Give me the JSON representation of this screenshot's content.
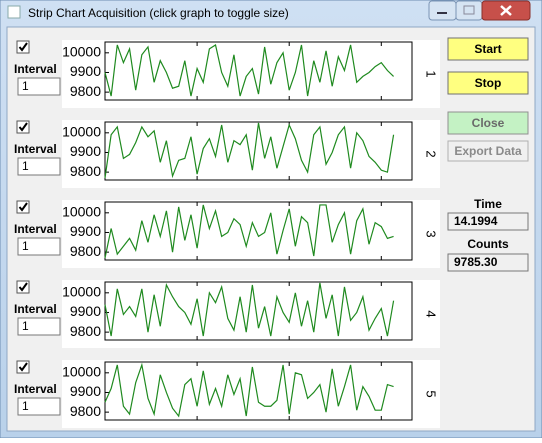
{
  "window": {
    "title": "Strip Chart Acquisition (click graph to toggle size)"
  },
  "buttons": {
    "start": "Start",
    "stop": "Stop",
    "close": "Close",
    "export": "Export Data"
  },
  "readouts": {
    "time_label": "Time",
    "time_value": "14.1994",
    "counts_label": "Counts",
    "counts_value": "9785.30"
  },
  "chart_data": [
    {
      "type": "line",
      "label": "1",
      "checked": true,
      "interval_label": "Interval",
      "interval_value": "1",
      "color": "#1f8a1f",
      "xlim": [
        0,
        50
      ],
      "xticks": [
        15,
        30,
        45
      ],
      "ylim": [
        9760,
        10055
      ],
      "yticks": [
        9800,
        9900,
        10000
      ],
      "values": [
        9900,
        9780,
        10040,
        9950,
        10020,
        9810,
        9990,
        10030,
        9850,
        9960,
        9900,
        9820,
        9830,
        9960,
        9780,
        9920,
        9850,
        10020,
        10040,
        9900,
        9830,
        9990,
        9780,
        9880,
        9920,
        9790,
        10030,
        9840,
        9950,
        10000,
        9810,
        9900,
        10040,
        9780,
        9960,
        9850,
        10010,
        9830,
        9980,
        9910,
        10040,
        9850,
        9880,
        9900,
        9930,
        9950,
        9910,
        9880
      ]
    },
    {
      "type": "line",
      "label": "2",
      "checked": true,
      "interval_label": "Interval",
      "interval_value": "1",
      "color": "#1f8a1f",
      "xlim": [
        0,
        50
      ],
      "xticks": [
        15,
        30,
        45
      ],
      "ylim": [
        9760,
        10055
      ],
      "yticks": [
        9800,
        9900,
        10000
      ],
      "values": [
        9770,
        9990,
        10030,
        9870,
        9890,
        9950,
        10030,
        9980,
        10010,
        9850,
        9960,
        9780,
        9860,
        9870,
        9980,
        9790,
        9920,
        9970,
        9880,
        10040,
        9850,
        9960,
        9940,
        9990,
        9810,
        10050,
        9870,
        9980,
        9820,
        9930,
        10040,
        9970,
        9860,
        9800,
        9990,
        10030,
        9840,
        9900,
        9990,
        10030,
        9820,
        10000,
        9960,
        9880,
        9850,
        9810,
        9800,
        9990
      ]
    },
    {
      "type": "line",
      "label": "3",
      "checked": true,
      "interval_label": "Interval",
      "interval_value": "1",
      "color": "#1f8a1f",
      "xlim": [
        0,
        50
      ],
      "xticks": [
        15,
        30,
        45
      ],
      "ylim": [
        9760,
        10055
      ],
      "yticks": [
        9800,
        9900,
        10000
      ],
      "values": [
        9770,
        9920,
        9790,
        9830,
        9870,
        9810,
        9960,
        9850,
        9990,
        9880,
        10010,
        9800,
        10030,
        9860,
        9990,
        9820,
        10040,
        9920,
        10010,
        9880,
        9900,
        9970,
        9940,
        9830,
        9950,
        9880,
        9900,
        10000,
        9790,
        9910,
        10020,
        9830,
        9980,
        9950,
        9780,
        10040,
        10040,
        9850,
        9940,
        10000,
        9790,
        9960,
        10020,
        9840,
        9950,
        9930,
        9870,
        9880
      ]
    },
    {
      "type": "line",
      "label": "4",
      "checked": true,
      "interval_label": "Interval",
      "interval_value": "1",
      "color": "#1f8a1f",
      "xlim": [
        0,
        50
      ],
      "xticks": [
        15,
        30,
        45
      ],
      "ylim": [
        9760,
        10055
      ],
      "yticks": [
        9800,
        9900,
        10000
      ],
      "values": [
        9940,
        9780,
        10020,
        9890,
        9930,
        9880,
        10020,
        9800,
        9990,
        9830,
        10040,
        9980,
        9930,
        9900,
        9840,
        9970,
        9780,
        10000,
        9950,
        10030,
        9870,
        9810,
        9980,
        9800,
        10040,
        9820,
        9930,
        9780,
        9980,
        9900,
        9850,
        10000,
        9830,
        9960,
        9800,
        10050,
        9870,
        9990,
        9780,
        10030,
        9860,
        9900,
        9980,
        9810,
        9870,
        9920,
        9780,
        9960
      ]
    },
    {
      "type": "line",
      "label": "5",
      "checked": true,
      "interval_label": "Interval",
      "interval_value": "1",
      "color": "#1f8a1f",
      "xlim": [
        0,
        50
      ],
      "xticks": [
        15,
        30,
        45
      ],
      "ylim": [
        9760,
        10055
      ],
      "yticks": [
        9800,
        9900,
        10000
      ],
      "values": [
        9850,
        9920,
        10040,
        9830,
        9790,
        9950,
        10040,
        9870,
        9790,
        9990,
        9900,
        9820,
        9780,
        9940,
        9970,
        9830,
        10010,
        9840,
        9920,
        9830,
        9990,
        9890,
        9970,
        9780,
        10030,
        9850,
        9830,
        9830,
        9860,
        10040,
        9790,
        10000,
        9990,
        9870,
        9900,
        9940,
        9800,
        10020,
        9830,
        9930,
        10040,
        9810,
        9930,
        9880,
        9810,
        9810,
        9940,
        9930
      ]
    }
  ]
}
